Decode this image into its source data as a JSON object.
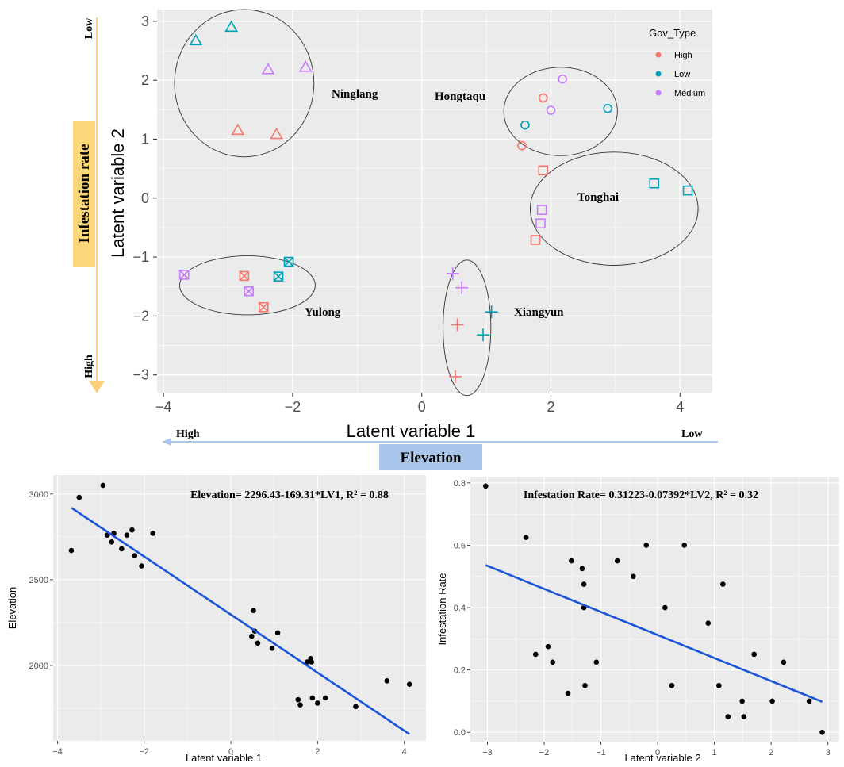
{
  "colors": {
    "panel_bg": "#ebebeb",
    "grid": "#ffffff",
    "High": "#f8766d",
    "Low": "#00a0b8",
    "Medium": "#c77cff",
    "fit_line": "#1a55d9",
    "orange_arrow": "#fbd07c",
    "blue_arrow": "#a9c6ea",
    "box_orange": "#fcd67a",
    "box_blue": "#a9c6ea"
  },
  "annotations": {
    "infestation_rate": "Infestation rate",
    "elevation": "Elevation",
    "left_low": "Low",
    "left_high": "High",
    "bottom_high": "High",
    "bottom_low": "Low"
  },
  "chart_data": [
    {
      "type": "scatter",
      "xlabel": "Latent variable 1",
      "ylabel": "Latent variable 2",
      "xlim": [
        -4.1,
        4.5
      ],
      "ylim": [
        -3.3,
        3.2
      ],
      "xticks": [
        -4,
        -2,
        0,
        2,
        4
      ],
      "yticks": [
        -3,
        -2,
        -1,
        0,
        1,
        2,
        3
      ],
      "grid": true,
      "legend": {
        "title": "Gov_Type",
        "position": "top-right",
        "entries": [
          "High",
          "Low",
          "Medium"
        ]
      },
      "clusters": [
        {
          "label": "Ninglang",
          "shape": "triangle",
          "points": [
            {
              "x": -3.5,
              "y": 2.67,
              "g": "Low"
            },
            {
              "x": -2.95,
              "y": 2.9,
              "g": "Low"
            },
            {
              "x": -2.38,
              "y": 2.18,
              "g": "Medium"
            },
            {
              "x": -1.8,
              "y": 2.22,
              "g": "Medium"
            },
            {
              "x": -2.85,
              "y": 1.15,
              "g": "High"
            },
            {
              "x": -2.25,
              "y": 1.08,
              "g": "High"
            }
          ]
        },
        {
          "label": "Hongtaqu",
          "shape": "circle",
          "points": [
            {
              "x": 2.18,
              "y": 2.02,
              "g": "Medium"
            },
            {
              "x": 1.88,
              "y": 1.7,
              "g": "High"
            },
            {
              "x": 2.0,
              "y": 1.49,
              "g": "Medium"
            },
            {
              "x": 2.88,
              "y": 1.52,
              "g": "Low"
            },
            {
              "x": 1.6,
              "y": 1.24,
              "g": "Low"
            },
            {
              "x": 1.55,
              "y": 0.89,
              "g": "High"
            }
          ]
        },
        {
          "label": "Tonghai",
          "shape": "square",
          "points": [
            {
              "x": 1.88,
              "y": 0.47,
              "g": "High"
            },
            {
              "x": 3.6,
              "y": 0.25,
              "g": "Low"
            },
            {
              "x": 4.12,
              "y": 0.13,
              "g": "Low"
            },
            {
              "x": 1.86,
              "y": -0.2,
              "g": "Medium"
            },
            {
              "x": 1.84,
              "y": -0.43,
              "g": "Medium"
            },
            {
              "x": 1.76,
              "y": -0.71,
              "g": "High"
            }
          ]
        },
        {
          "label": "Yulong",
          "shape": "square-x",
          "points": [
            {
              "x": -3.68,
              "y": -1.3,
              "g": "Medium"
            },
            {
              "x": -2.75,
              "y": -1.32,
              "g": "High"
            },
            {
              "x": -2.22,
              "y": -1.33,
              "g": "Low"
            },
            {
              "x": -2.06,
              "y": -1.08,
              "g": "Low"
            },
            {
              "x": -2.68,
              "y": -1.58,
              "g": "Medium"
            },
            {
              "x": -2.45,
              "y": -1.85,
              "g": "High"
            }
          ]
        },
        {
          "label": "Xiangyun",
          "shape": "plus",
          "points": [
            {
              "x": 0.48,
              "y": -1.28,
              "g": "Medium"
            },
            {
              "x": 0.62,
              "y": -1.52,
              "g": "Medium"
            },
            {
              "x": 1.08,
              "y": -1.93,
              "g": "Low"
            },
            {
              "x": 0.55,
              "y": -2.15,
              "g": "High"
            },
            {
              "x": 0.95,
              "y": -2.32,
              "g": "Low"
            },
            {
              "x": 0.52,
              "y": -3.03,
              "g": "High"
            }
          ]
        }
      ],
      "ellipses": [
        {
          "cx": -2.75,
          "cy": 1.95,
          "rx": 1.08,
          "ry": 1.25
        },
        {
          "cx": 2.15,
          "cy": 1.47,
          "rx": 0.88,
          "ry": 0.75
        },
        {
          "cx": 2.98,
          "cy": -0.18,
          "rx": 1.3,
          "ry": 0.96
        },
        {
          "cx": -2.7,
          "cy": -1.48,
          "rx": 1.05,
          "ry": 0.5
        },
        {
          "cx": 0.7,
          "cy": -2.2,
          "rx": 0.37,
          "ry": 1.15
        }
      ]
    },
    {
      "type": "scatter",
      "xlabel": "Latent variable 1",
      "ylabel": "Elevation",
      "annotation": "Elevation= 2296.43-169.31*LV1, R² = 0.88",
      "xlim": [
        -4.1,
        4.5
      ],
      "ylim": [
        1560,
        3110
      ],
      "xticks": [
        -4,
        -2,
        0,
        2,
        4
      ],
      "yticks": [
        2000,
        2500,
        3000
      ],
      "fit": {
        "intercept": 2296.43,
        "slope": -169.31,
        "x_range": [
          -3.68,
          4.12
        ]
      },
      "x": [
        -3.68,
        -3.5,
        -2.95,
        -2.85,
        -2.75,
        -2.7,
        -2.52,
        -2.4,
        -2.28,
        -2.22,
        -2.06,
        -1.8,
        0.48,
        0.52,
        0.55,
        0.62,
        0.95,
        1.08,
        1.55,
        1.6,
        1.76,
        1.84,
        1.86,
        1.88,
        2.0,
        2.18,
        2.88,
        3.6,
        4.12
      ],
      "y": [
        2670,
        2980,
        3050,
        2760,
        2720,
        2770,
        2680,
        2760,
        2790,
        2640,
        2580,
        2770,
        2170,
        2320,
        2200,
        2130,
        2100,
        2190,
        1800,
        1770,
        2020,
        2040,
        2020,
        1810,
        1780,
        1810,
        1760,
        1910,
        1890
      ]
    },
    {
      "type": "scatter",
      "xlabel": "Latent variable 2",
      "ylabel": "Infestation Rate",
      "annotation": "Infestation Rate= 0.31223-0.07392*LV2, R² = 0.32",
      "xlim": [
        -3.3,
        3.2
      ],
      "ylim": [
        -0.03,
        0.82
      ],
      "xticks": [
        -3,
        -2,
        -1,
        0,
        1,
        2,
        3
      ],
      "yticks": [
        0.0,
        0.2,
        0.4,
        0.6,
        0.8
      ],
      "fit": {
        "intercept": 0.31223,
        "slope": -0.07392,
        "x_range": [
          -3.03,
          2.9
        ]
      },
      "x": [
        -3.03,
        -2.32,
        -2.15,
        -1.93,
        -1.85,
        -1.58,
        -1.52,
        -1.33,
        -1.3,
        -1.3,
        -1.28,
        -1.08,
        -0.71,
        -0.43,
        -0.2,
        0.13,
        0.25,
        0.47,
        0.89,
        1.08,
        1.15,
        1.24,
        1.49,
        1.52,
        1.7,
        2.02,
        2.22,
        2.67,
        2.9
      ],
      "y": [
        0.79,
        0.625,
        0.25,
        0.275,
        0.225,
        0.125,
        0.55,
        0.525,
        0.475,
        0.4,
        0.15,
        0.225,
        0.55,
        0.5,
        0.6,
        0.4,
        0.15,
        0.6,
        0.35,
        0.15,
        0.475,
        0.05,
        0.1,
        0.05,
        0.25,
        0.1,
        0.225,
        0.1,
        0.0
      ]
    }
  ]
}
